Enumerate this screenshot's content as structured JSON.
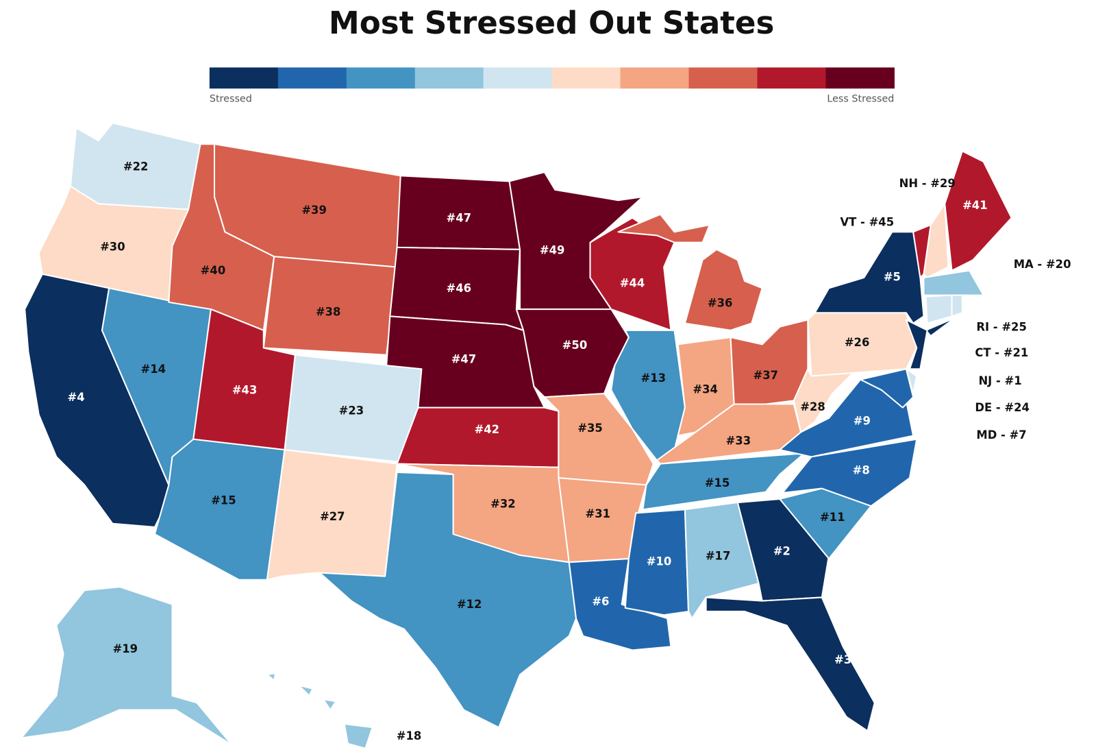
{
  "title": "Most Stressed Out States",
  "legend": {
    "colors": [
      "#0b2f5e",
      "#2166ac",
      "#4393c3",
      "#92c5de",
      "#d1e5f0",
      "#fddbc7",
      "#f4a582",
      "#d6604d",
      "#b2182b",
      "#67001f"
    ],
    "low_label": "Stressed",
    "high_label": "Less Stressed"
  },
  "regions": [
    {
      "label": "#22",
      "color": "#d1e5f0"
    },
    {
      "label": "#30",
      "color": "#fddbc7"
    },
    {
      "label": "#4",
      "color": "#0b2f5e"
    },
    {
      "label": "#14",
      "color": "#4393c3"
    },
    {
      "label": "#40",
      "color": "#d6604d"
    },
    {
      "label": "#39",
      "color": "#d6604d"
    },
    {
      "label": "#38",
      "color": "#d6604d"
    },
    {
      "label": "#43",
      "color": "#b2182b"
    },
    {
      "label": "#23",
      "color": "#d1e5f0"
    },
    {
      "label": "#15",
      "color": "#4393c3"
    },
    {
      "label": "#27",
      "color": "#fddbc7"
    },
    {
      "label": "#47",
      "color": "#67001f"
    },
    {
      "label": "#46",
      "color": "#67001f"
    },
    {
      "label": "#47",
      "color": "#67001f"
    },
    {
      "label": "#42",
      "color": "#b2182b"
    },
    {
      "label": "#32",
      "color": "#f4a582"
    },
    {
      "label": "#12",
      "color": "#4393c3"
    },
    {
      "label": "#49",
      "color": "#67001f"
    },
    {
      "label": "#50",
      "color": "#67001f"
    },
    {
      "label": "#35",
      "color": "#f4a582"
    },
    {
      "label": "#31",
      "color": "#f4a582"
    },
    {
      "label": "#6",
      "color": "#2166ac"
    },
    {
      "label": "#44",
      "color": "#b2182b"
    },
    {
      "label": "#36",
      "color": "#d6604d"
    },
    {
      "label": "#13",
      "color": "#4393c3"
    },
    {
      "label": "#34",
      "color": "#f4a582"
    },
    {
      "label": "#37",
      "color": "#d6604d"
    },
    {
      "label": "#33",
      "color": "#f4a582"
    },
    {
      "label": "#15",
      "color": "#4393c3"
    },
    {
      "label": "#10",
      "color": "#2166ac"
    },
    {
      "label": "#17",
      "color": "#92c5de"
    },
    {
      "label": "#2",
      "color": "#0b2f5e"
    },
    {
      "label": "#3",
      "color": "#0b2f5e"
    },
    {
      "label": "#11",
      "color": "#4393c3"
    },
    {
      "label": "#8",
      "color": "#2166ac"
    },
    {
      "label": "#9",
      "color": "#2166ac"
    },
    {
      "label": "#28",
      "color": "#fddbc7"
    },
    {
      "label": "#26",
      "color": "#fddbc7"
    },
    {
      "label": "#5",
      "color": "#0b2f5e"
    },
    {
      "label": "#41",
      "color": "#b2182b"
    },
    {
      "label": "#19",
      "color": "#92c5de"
    },
    {
      "label": "#18",
      "color": "#92c5de"
    }
  ],
  "callouts": [
    {
      "text": "NH - #29",
      "color": "#fddbc7"
    },
    {
      "text": "VT - #45",
      "color": "#b2182b"
    },
    {
      "text": "MA - #20",
      "color": "#92c5de"
    },
    {
      "text": "RI - #25",
      "color": "#d1e5f0"
    },
    {
      "text": "CT - #21",
      "color": "#d1e5f0"
    },
    {
      "text": "NJ - #1",
      "color": "#0b2f5e"
    },
    {
      "text": "DE - #24",
      "color": "#d1e5f0"
    },
    {
      "text": "MD - #7",
      "color": "#2166ac"
    }
  ]
}
